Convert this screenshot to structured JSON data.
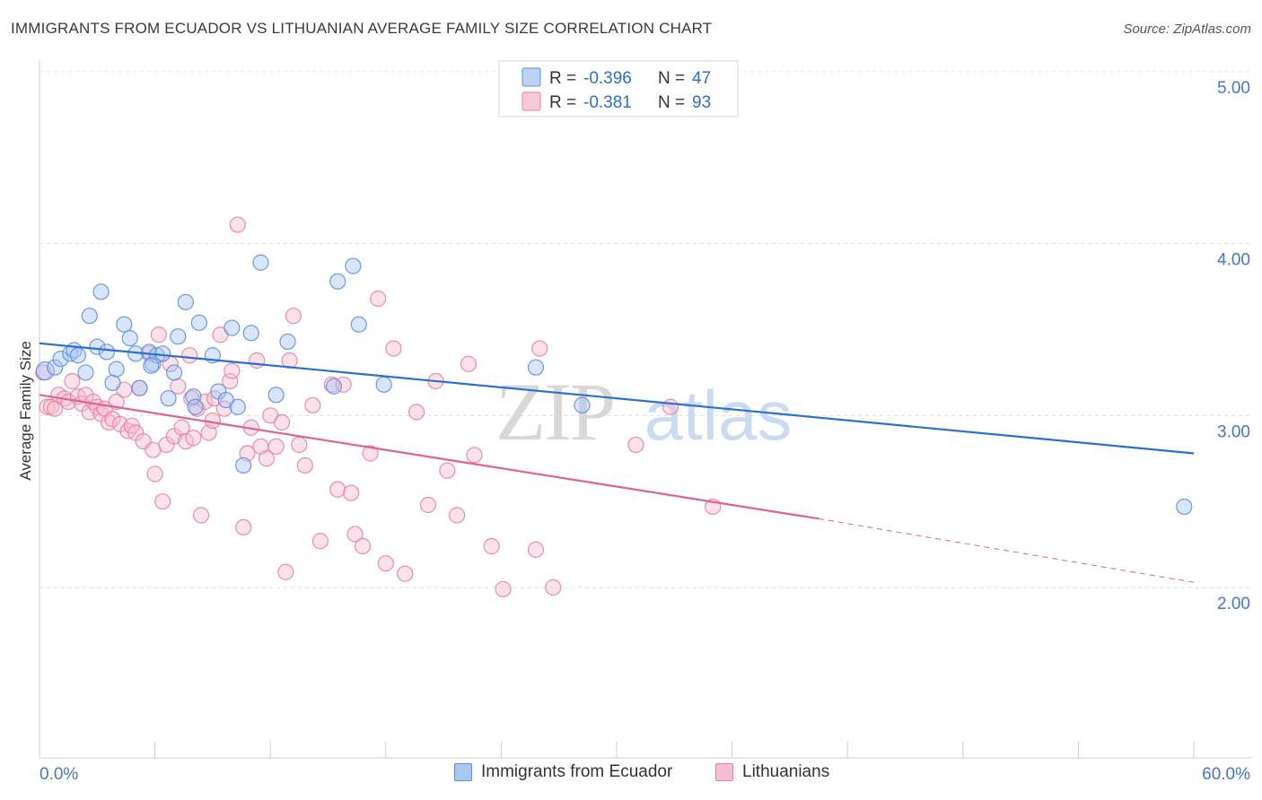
{
  "title": "IMMIGRANTS FROM ECUADOR VS LITHUANIAN AVERAGE FAMILY SIZE CORRELATION CHART",
  "source": "Source: ZipAtlas.com",
  "watermark": {
    "zip": "ZIP",
    "atlas": "atlas"
  },
  "colors": {
    "blue": "#5b8fe0",
    "blue_fill": "#aac6f3",
    "blue_line": "#2b6fd1",
    "pink": "#e97fa1",
    "pink_fill": "#f6bccf",
    "pink_line": "#e0628f",
    "axis_label": "#4477cc",
    "grid": "#dddddd"
  },
  "legend": {
    "rows": [
      {
        "r_label": "R =",
        "r_value": "-0.396",
        "n_label": "N =",
        "n_value": "47",
        "series": "blue"
      },
      {
        "r_label": "R =",
        "r_value": "-0.381",
        "n_label": "N =",
        "n_value": "93",
        "series": "pink"
      }
    ]
  },
  "chart_data": {
    "type": "scatter",
    "title": "IMMIGRANTS FROM ECUADOR VS LITHUANIAN AVERAGE FAMILY SIZE CORRELATION CHART",
    "xlabel": "",
    "ylabel": "Average Family Size",
    "xlim": [
      0,
      60
    ],
    "ylim": [
      1.0,
      5.15
    ],
    "x_tick_labels": [
      "0.0%",
      "60.0%"
    ],
    "y_ticks": [
      2.0,
      3.0,
      4.0,
      5.0
    ],
    "y_tick_labels": [
      "2.00",
      "3.00",
      "4.00",
      "5.00"
    ],
    "grid": true,
    "legend_placement": "bottom",
    "series": [
      {
        "name": "Immigrants from Ecuador",
        "color": "#5b8fe0",
        "trend": {
          "x": [
            0,
            60
          ],
          "y": [
            3.42,
            2.78
          ],
          "dashed_from": null
        },
        "points": [
          [
            0.3,
            3.26
          ],
          [
            0.8,
            3.28
          ],
          [
            1.1,
            3.33
          ],
          [
            1.6,
            3.36
          ],
          [
            1.8,
            3.38
          ],
          [
            2.0,
            3.35
          ],
          [
            2.4,
            3.25
          ],
          [
            2.6,
            3.58
          ],
          [
            3.0,
            3.4
          ],
          [
            3.2,
            3.72
          ],
          [
            3.5,
            3.37
          ],
          [
            3.8,
            3.19
          ],
          [
            4.0,
            3.27
          ],
          [
            4.4,
            3.53
          ],
          [
            4.7,
            3.45
          ],
          [
            5.0,
            3.36
          ],
          [
            5.2,
            3.16
          ],
          [
            5.7,
            3.37
          ],
          [
            5.9,
            3.3
          ],
          [
            6.1,
            3.35
          ],
          [
            6.4,
            3.36
          ],
          [
            6.7,
            3.1
          ],
          [
            7.0,
            3.25
          ],
          [
            7.2,
            3.46
          ],
          [
            7.6,
            3.66
          ],
          [
            8.0,
            3.11
          ],
          [
            8.3,
            3.54
          ],
          [
            9.0,
            3.35
          ],
          [
            9.3,
            3.14
          ],
          [
            9.7,
            3.09
          ],
          [
            10.0,
            3.51
          ],
          [
            10.3,
            3.05
          ],
          [
            10.6,
            2.71
          ],
          [
            11.0,
            3.48
          ],
          [
            11.5,
            3.89
          ],
          [
            12.3,
            3.12
          ],
          [
            12.9,
            3.43
          ],
          [
            15.3,
            3.17
          ],
          [
            15.5,
            3.78
          ],
          [
            16.3,
            3.87
          ],
          [
            16.6,
            3.53
          ],
          [
            17.9,
            3.18
          ],
          [
            25.8,
            3.28
          ],
          [
            28.2,
            3.06
          ],
          [
            59.5,
            2.47
          ],
          [
            8.1,
            3.05
          ],
          [
            5.8,
            3.29
          ]
        ]
      },
      {
        "name": "Lithuanians",
        "color": "#e97fa1",
        "trend": {
          "x": [
            0,
            40.5
          ],
          "y": [
            3.12,
            2.4
          ],
          "dashed_to": [
            60,
            2.03
          ]
        },
        "points": [
          [
            0.2,
            3.25
          ],
          [
            0.4,
            3.05
          ],
          [
            0.6,
            3.05
          ],
          [
            0.8,
            3.04
          ],
          [
            1.0,
            3.12
          ],
          [
            1.3,
            3.1
          ],
          [
            1.5,
            3.08
          ],
          [
            1.7,
            3.2
          ],
          [
            2.0,
            3.11
          ],
          [
            2.2,
            3.07
          ],
          [
            2.4,
            3.12
          ],
          [
            2.6,
            3.02
          ],
          [
            2.8,
            3.08
          ],
          [
            3.0,
            3.05
          ],
          [
            3.2,
            3.01
          ],
          [
            3.4,
            3.04
          ],
          [
            3.6,
            2.96
          ],
          [
            3.8,
            2.98
          ],
          [
            4.0,
            3.08
          ],
          [
            4.2,
            2.95
          ],
          [
            4.4,
            3.15
          ],
          [
            4.6,
            2.91
          ],
          [
            4.8,
            2.94
          ],
          [
            5.0,
            2.9
          ],
          [
            5.2,
            3.16
          ],
          [
            5.4,
            2.85
          ],
          [
            5.7,
            3.36
          ],
          [
            5.9,
            2.8
          ],
          [
            6.0,
            2.66
          ],
          [
            6.2,
            3.47
          ],
          [
            6.4,
            2.5
          ],
          [
            6.6,
            2.83
          ],
          [
            6.8,
            3.3
          ],
          [
            7.0,
            2.88
          ],
          [
            7.2,
            3.17
          ],
          [
            7.4,
            2.93
          ],
          [
            7.6,
            2.85
          ],
          [
            7.8,
            3.35
          ],
          [
            8.0,
            2.87
          ],
          [
            8.2,
            3.04
          ],
          [
            8.4,
            2.42
          ],
          [
            8.6,
            3.08
          ],
          [
            8.8,
            2.9
          ],
          [
            9.1,
            3.1
          ],
          [
            9.4,
            3.47
          ],
          [
            9.6,
            3.04
          ],
          [
            9.9,
            3.2
          ],
          [
            10.0,
            3.26
          ],
          [
            10.3,
            4.11
          ],
          [
            10.6,
            2.35
          ],
          [
            10.8,
            2.78
          ],
          [
            11.0,
            2.93
          ],
          [
            11.3,
            3.32
          ],
          [
            11.5,
            2.82
          ],
          [
            11.8,
            2.75
          ],
          [
            12.0,
            3.0
          ],
          [
            12.3,
            2.82
          ],
          [
            12.6,
            2.96
          ],
          [
            12.8,
            2.09
          ],
          [
            13.0,
            3.32
          ],
          [
            13.2,
            3.58
          ],
          [
            13.8,
            2.71
          ],
          [
            14.2,
            3.06
          ],
          [
            14.6,
            2.27
          ],
          [
            15.2,
            3.18
          ],
          [
            15.5,
            2.57
          ],
          [
            15.8,
            3.18
          ],
          [
            16.2,
            2.55
          ],
          [
            16.4,
            2.31
          ],
          [
            16.8,
            2.24
          ],
          [
            17.2,
            2.78
          ],
          [
            17.6,
            3.68
          ],
          [
            18.0,
            2.14
          ],
          [
            18.4,
            3.39
          ],
          [
            19.0,
            2.08
          ],
          [
            19.6,
            3.02
          ],
          [
            20.2,
            2.48
          ],
          [
            20.6,
            3.2
          ],
          [
            21.2,
            2.68
          ],
          [
            21.7,
            2.42
          ],
          [
            22.3,
            3.3
          ],
          [
            22.6,
            2.77
          ],
          [
            23.5,
            2.24
          ],
          [
            24.1,
            1.99
          ],
          [
            25.8,
            2.22
          ],
          [
            26.0,
            3.39
          ],
          [
            26.7,
            2.0
          ],
          [
            31.0,
            2.83
          ],
          [
            32.8,
            3.05
          ],
          [
            35.0,
            2.47
          ],
          [
            13.5,
            2.83
          ],
          [
            9.0,
            2.97
          ],
          [
            7.9,
            3.1
          ]
        ]
      }
    ]
  }
}
